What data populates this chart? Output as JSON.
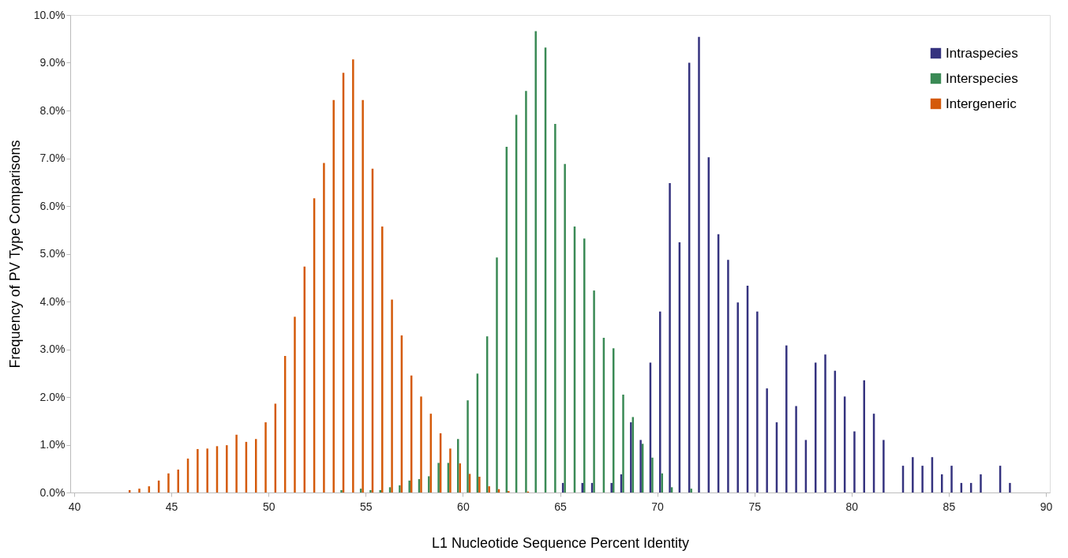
{
  "chart_data": {
    "type": "bar",
    "xlabel": "L1 Nucleotide Sequence Percent Identity",
    "ylabel": "Frequency of PV Type Comparisons",
    "xlim": [
      40,
      90
    ],
    "xticks": [
      40,
      45,
      50,
      55,
      60,
      65,
      70,
      75,
      80,
      85,
      90
    ],
    "ylim": [
      0,
      10
    ],
    "yticks": [
      {
        "value": 0,
        "label": "0.0%"
      },
      {
        "value": 1,
        "label": "1.0%"
      },
      {
        "value": 2,
        "label": "2.0%"
      },
      {
        "value": 3,
        "label": "3.0%"
      },
      {
        "value": 4,
        "label": "4.0%"
      },
      {
        "value": 5,
        "label": "5.0%"
      },
      {
        "value": 6,
        "label": "6.0%"
      },
      {
        "value": 7,
        "label": "7.0%"
      },
      {
        "value": 8,
        "label": "8.0%"
      },
      {
        "value": 9,
        "label": "9.0%"
      },
      {
        "value": 10,
        "label": "10.0%"
      }
    ],
    "grid": false,
    "legend": "top right",
    "series": [
      {
        "name": "Intraspecies",
        "color": "#35337f",
        "x": [
          65.25,
          66.25,
          66.75,
          67.75,
          68.25,
          68.75,
          69.25,
          69.75,
          70.25,
          70.75,
          71.25,
          71.75,
          72.25,
          72.75,
          73.25,
          73.75,
          74.25,
          74.75,
          75.25,
          75.75,
          76.25,
          76.75,
          77.25,
          77.75,
          78.25,
          78.75,
          79.25,
          79.75,
          80.25,
          80.75,
          81.25,
          81.75,
          82.75,
          83.25,
          83.75,
          84.25,
          84.75,
          85.25,
          85.75,
          86.25,
          86.75,
          87.75,
          88.25
        ],
        "values": [
          0.2,
          0.2,
          0.2,
          0.2,
          0.38,
          1.47,
          1.1,
          2.72,
          3.79,
          6.48,
          5.24,
          9.0,
          9.54,
          7.02,
          5.41,
          4.87,
          3.98,
          4.33,
          3.79,
          2.18,
          1.47,
          3.08,
          1.81,
          1.1,
          2.72,
          2.89,
          2.55,
          2.01,
          1.28,
          2.35,
          1.65,
          1.1,
          0.56,
          0.74,
          0.56,
          0.74,
          0.38,
          0.56,
          0.2,
          0.2,
          0.38,
          0.56,
          0.2
        ]
      },
      {
        "name": "Interspecies",
        "color": "#3a8a55",
        "x": [
          53.75,
          54.75,
          55.25,
          55.75,
          56.25,
          56.75,
          57.25,
          57.75,
          58.25,
          58.75,
          59.25,
          59.75,
          60.25,
          60.75,
          61.25,
          61.75,
          62.25,
          62.75,
          63.25,
          63.75,
          64.25,
          64.75,
          65.25,
          65.75,
          66.25,
          66.75,
          67.25,
          67.75,
          68.25,
          68.75,
          69.25,
          69.75,
          70.25,
          70.75,
          71.75
        ],
        "values": [
          0.05,
          0.08,
          0.05,
          0.05,
          0.11,
          0.15,
          0.25,
          0.28,
          0.34,
          0.62,
          0.62,
          1.12,
          1.93,
          2.49,
          3.27,
          4.92,
          7.24,
          7.91,
          8.41,
          9.66,
          9.32,
          7.72,
          6.88,
          5.57,
          5.32,
          4.23,
          3.24,
          3.02,
          2.05,
          1.58,
          1.02,
          0.73,
          0.4,
          0.11,
          0.08
        ]
      },
      {
        "name": "Intergeneric",
        "color": "#d45a0a",
        "x": [
          42.75,
          43.25,
          43.75,
          44.25,
          44.75,
          45.25,
          45.75,
          46.25,
          46.75,
          47.25,
          47.75,
          48.25,
          48.75,
          49.25,
          49.75,
          50.25,
          50.75,
          51.25,
          51.75,
          52.25,
          52.75,
          53.25,
          53.75,
          54.25,
          54.75,
          55.25,
          55.75,
          56.25,
          56.75,
          57.25,
          57.75,
          58.25,
          58.75,
          59.25,
          59.75,
          60.25,
          60.75,
          61.25,
          61.75,
          62.25,
          63.25
        ],
        "values": [
          0.05,
          0.08,
          0.13,
          0.25,
          0.4,
          0.48,
          0.71,
          0.91,
          0.92,
          0.97,
          0.99,
          1.21,
          1.06,
          1.12,
          1.47,
          1.86,
          2.86,
          3.68,
          4.73,
          6.16,
          6.9,
          8.22,
          8.79,
          9.07,
          8.22,
          6.78,
          5.57,
          4.04,
          3.29,
          2.45,
          2.01,
          1.65,
          1.24,
          0.92,
          0.61,
          0.39,
          0.33,
          0.13,
          0.07,
          0.03,
          0.02
        ]
      }
    ]
  }
}
